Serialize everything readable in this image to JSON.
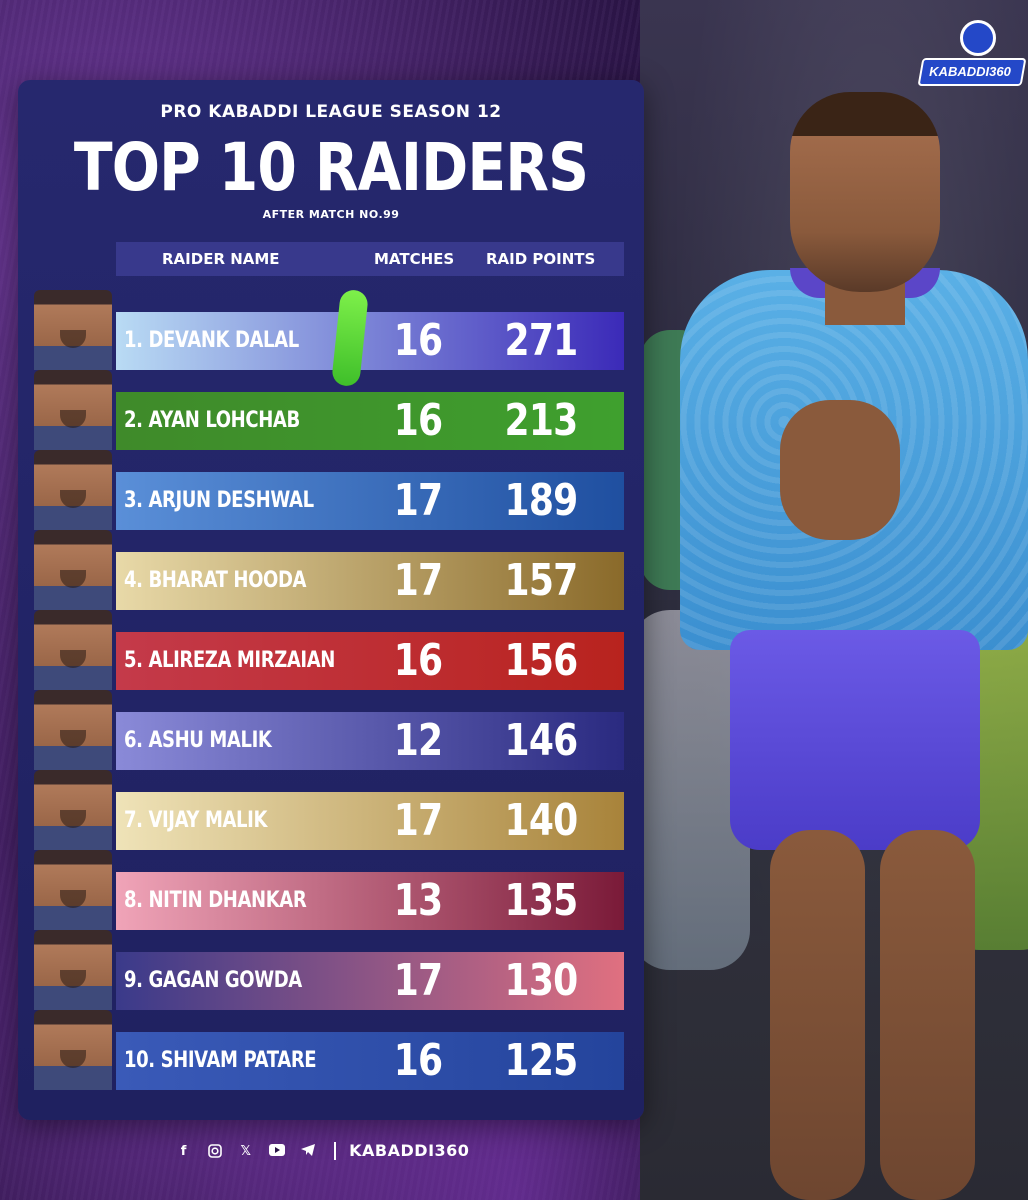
{
  "brand": {
    "logo_text": "KABADDI360"
  },
  "header": {
    "subtitle": "PRO KABADDI LEAGUE SEASON 12",
    "title": "TOP 10 RAIDERS",
    "after": "AFTER MATCH NO.99"
  },
  "table": {
    "columns": [
      "RAIDER NAME",
      "MATCHES",
      "RAID POINTS"
    ],
    "rows": [
      {
        "name": "1. DEVANK DALAL",
        "matches": "16",
        "points": "271",
        "color_from": "#b9dbf4",
        "color_to": "#3b2ab8"
      },
      {
        "name": "2. AYAN LOHCHAB",
        "matches": "16",
        "points": "213",
        "color_from": "#3f8a2a",
        "color_to": "#3fa02e"
      },
      {
        "name": "3. ARJUN DESHWAL",
        "matches": "17",
        "points": "189",
        "color_from": "#5a8fd8",
        "color_to": "#1f4fa0"
      },
      {
        "name": "4. BHARAT HOODA",
        "matches": "17",
        "points": "157",
        "color_from": "#e8d9a8",
        "color_to": "#8a6a2a"
      },
      {
        "name": "5. ALIREZA MIRZAIAN",
        "matches": "16",
        "points": "156",
        "color_from": "#c43a4a",
        "color_to": "#b8231e"
      },
      {
        "name": "6. ASHU MALIK",
        "matches": "12",
        "points": "146",
        "color_from": "#8a8ad8",
        "color_to": "#2a2a80"
      },
      {
        "name": "7. VIJAY MALIK",
        "matches": "17",
        "points": "140",
        "color_from": "#efe3b8",
        "color_to": "#a8833a"
      },
      {
        "name": "8. NITIN DHANKAR",
        "matches": "13",
        "points": "135",
        "color_from": "#f0a4b8",
        "color_to": "#7a1a38"
      },
      {
        "name": "9. GAGAN GOWDA",
        "matches": "17",
        "points": "130",
        "color_from": "#3a3a8a",
        "color_to": "#e07080"
      },
      {
        "name": "10. SHIVAM PATARE",
        "matches": "16",
        "points": "125",
        "color_from": "#3a5ab8",
        "color_to": "#24449c"
      }
    ]
  },
  "footer": {
    "icons": [
      "facebook-icon",
      "instagram-icon",
      "x-icon",
      "youtube-icon",
      "telegram-icon"
    ],
    "handle": "KABADDI360"
  }
}
